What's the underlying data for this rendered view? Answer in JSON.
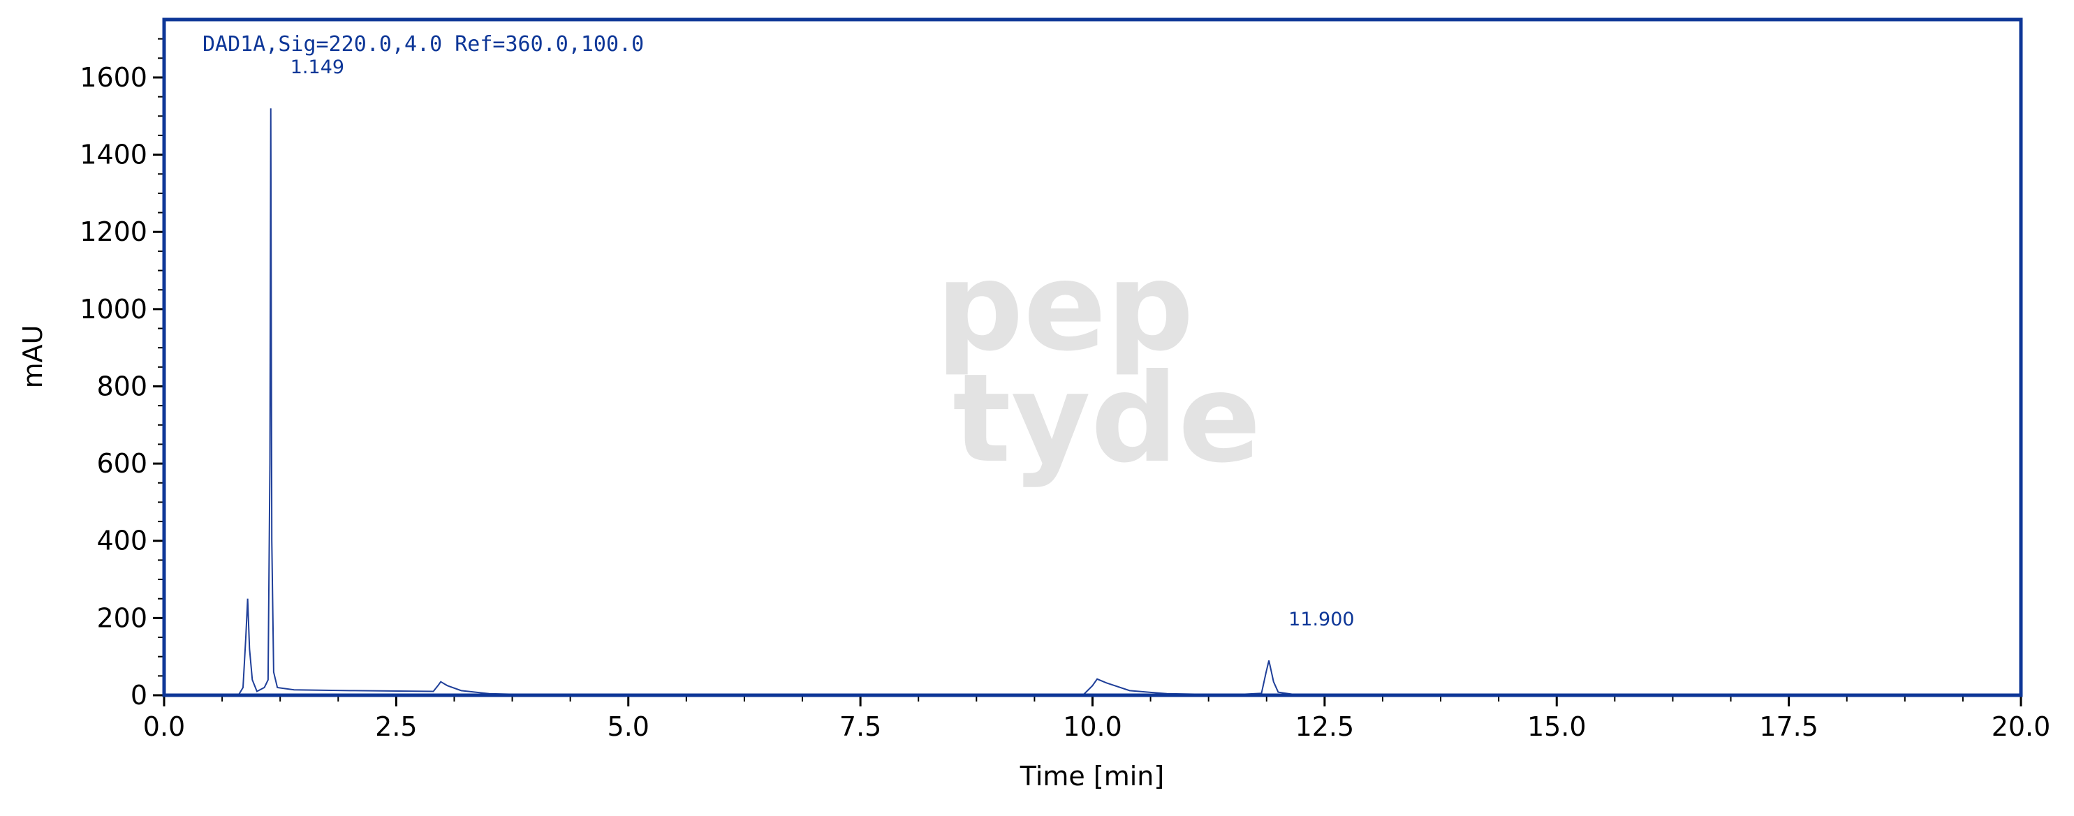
{
  "chart_data": {
    "type": "line",
    "signal_label": "DAD1A,Sig=220.0,4.0 Ref=360.0,100.0",
    "xlabel": "Time [min]",
    "ylabel": "mAU",
    "watermark": [
      "pep",
      "tyde"
    ],
    "series": [
      {
        "color": "#1f3f99",
        "x": [
          0,
          0.8,
          0.85,
          0.88,
          0.9,
          0.92,
          0.95,
          1.0,
          1.08,
          1.12,
          1.14,
          1.149,
          1.16,
          1.18,
          1.22,
          1.4,
          2.0,
          2.9,
          2.95,
          2.98,
          3.05,
          3.2,
          3.5,
          4.0,
          9.9,
          10.0,
          10.05,
          10.15,
          10.4,
          10.8,
          11.5,
          11.82,
          11.87,
          11.9,
          11.95,
          12.0,
          12.2,
          20
        ],
        "values": [
          0,
          0,
          20,
          150,
          250,
          120,
          40,
          10,
          20,
          40,
          600,
          1520,
          400,
          60,
          20,
          14,
          12,
          10,
          25,
          35,
          25,
          12,
          4,
          1,
          1,
          25,
          42,
          32,
          12,
          4,
          1,
          5,
          60,
          90,
          35,
          8,
          1,
          0
        ]
      }
    ],
    "annotations": [
      1.149,
      {
        "value": 11.9,
        "label": "11.900"
      }
    ],
    "xlim": [
      0,
      20
    ],
    "ylim": [
      0,
      1750
    ],
    "xticks": [
      {
        "value": 0,
        "label": "0.0"
      },
      2.5,
      {
        "value": 5,
        "label": "5.0"
      },
      7.5,
      {
        "value": 10,
        "label": "10.0"
      },
      12.5,
      {
        "value": 15,
        "label": "15.0"
      },
      17.5,
      {
        "value": 20,
        "label": "20.0"
      }
    ],
    "yticks": [
      0,
      200,
      400,
      600,
      800,
      1000,
      1200,
      1400,
      1600
    ],
    "xminorticks": [
      0.625,
      1.25,
      1.875,
      3.125,
      3.75,
      4.375,
      5.625,
      6.25,
      6.875,
      8.125,
      8.75,
      9.375,
      10.625,
      11.25,
      11.875,
      13.125,
      13.75,
      14.375,
      15.625,
      16.25,
      16.875,
      18.125,
      18.75,
      19.375
    ],
    "yminorticks": [
      50,
      100,
      150,
      250,
      300,
      350,
      450,
      500,
      550,
      650,
      700,
      750,
      850,
      900,
      950,
      1050,
      1100,
      1150,
      1250,
      1300,
      1350,
      1450,
      1500,
      1550,
      1650,
      1700
    ],
    "frame_color": "#0d3697"
  }
}
